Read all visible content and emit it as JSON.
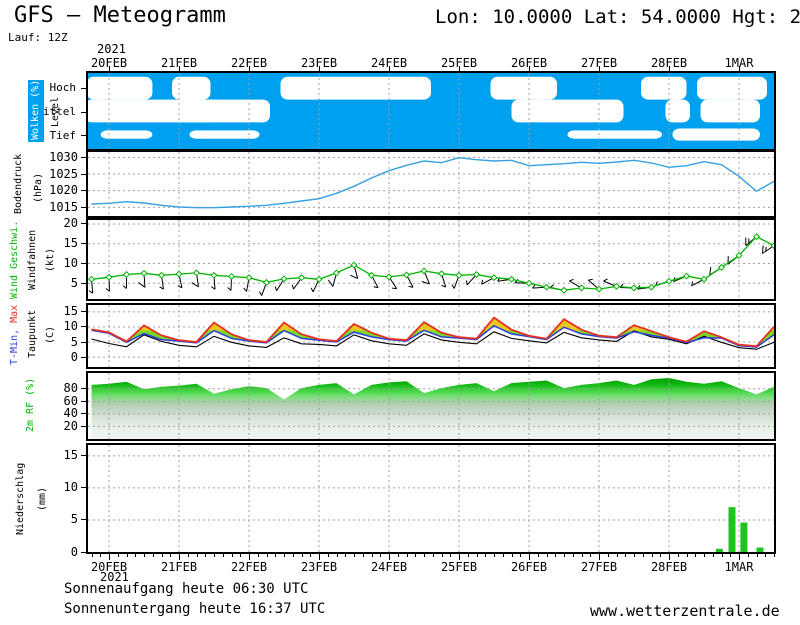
{
  "header": {
    "title": "GFS — Meteogramm",
    "coords": "Lon: 10.0000 Lat: 54.0000 Hgt: 2",
    "run_label": "Lauf: 12Z"
  },
  "time_axis": {
    "year": "2021",
    "labels": [
      "20FEB",
      "21FEB",
      "22FEB",
      "23FEB",
      "24FEB",
      "25FEB",
      "26FEB",
      "27FEB",
      "28FEB",
      "1MAR"
    ],
    "day_min": -0.3,
    "day_max": 9.5
  },
  "footer": {
    "sunrise": "Sonnenaufgang heute 06:30 UTC",
    "sunset": "Sonnenuntergang heute 16:37 UTC",
    "website": "www.wetterzentrale.de"
  },
  "colors": {
    "cloud_blue": "#00A0F0",
    "pressure_line": "#38A0E0",
    "wind_green": "#00B400",
    "temp_max_red": "#E83020",
    "temp_min_blue": "#2840E0",
    "dew_black": "#000000",
    "band_green": "#7CD628",
    "band_yellow": "#E8C81E",
    "precip_green": "#1EC41E",
    "grid_gray": "#A0A0A0"
  },
  "chart_data": [
    {
      "id": "clouds",
      "type": "cloud-cover",
      "label": "Wolken (%)",
      "sublabel": "Level",
      "rows": [
        "Hoch",
        "Mittel",
        "Tief"
      ],
      "clear_patches": {
        "hoch": [
          [
            -0.32,
            0.62
          ],
          [
            0.9,
            1.45
          ],
          [
            2.45,
            4.6
          ],
          [
            5.45,
            6.4
          ],
          [
            7.6,
            8.25
          ],
          [
            8.4,
            9.4
          ],
          [
            9.55,
            9.8
          ]
        ],
        "mittel": [
          [
            -0.35,
            1.55
          ],
          [
            0.95,
            2.3
          ],
          [
            5.75,
            7.35
          ],
          [
            7.95,
            8.3
          ],
          [
            8.45,
            9.3
          ]
        ],
        "tief": [
          [
            -0.12,
            0.62
          ],
          [
            1.15,
            2.15
          ],
          [
            6.55,
            7.9
          ],
          [
            8.05,
            9.3,
            0.16
          ]
        ]
      }
    },
    {
      "id": "pressure",
      "type": "line",
      "label": "Bodendruck",
      "unit": "(hPa)",
      "ticks": [
        1015,
        1020,
        1025,
        1030
      ],
      "y_range": [
        1012.4,
        1031.6
      ],
      "x_start": -0.25,
      "x_step": 0.25,
      "values": [
        1016.0,
        1016.2,
        1016.7,
        1016.3,
        1015.6,
        1015.1,
        1014.9,
        1014.9,
        1015.1,
        1015.3,
        1015.6,
        1016.2,
        1016.9,
        1017.6,
        1019.2,
        1021.3,
        1023.8,
        1026.0,
        1027.6,
        1028.9,
        1028.4,
        1029.9,
        1029.3,
        1028.9,
        1029.1,
        1027.5,
        1027.8,
        1028.1,
        1028.5,
        1028.2,
        1028.6,
        1029.1,
        1028.3,
        1027.0,
        1027.5,
        1028.7,
        1027.8,
        1024.3,
        1019.8,
        1022.8
      ]
    },
    {
      "id": "wind",
      "type": "wind",
      "label": "Wind Geschwi.",
      "sublabel": "Windfahnen",
      "unit": "(kt)",
      "ticks": [
        5,
        10,
        15,
        20
      ],
      "y_range": [
        1,
        21
      ],
      "x_start": -0.25,
      "x_step": 0.25,
      "speed": [
        6.0,
        6.5,
        7.2,
        7.5,
        7.0,
        7.3,
        7.6,
        7.0,
        6.7,
        6.4,
        5.2,
        6.1,
        6.4,
        6.0,
        7.6,
        9.6,
        7.0,
        6.6,
        7.1,
        8.1,
        7.4,
        7.0,
        7.2,
        6.4,
        6.0,
        5.0,
        4.0,
        3.2,
        3.8,
        3.5,
        4.2,
        3.8,
        4.0,
        5.5,
        6.8,
        6.0,
        9.0,
        12.0,
        16.8,
        14.5
      ],
      "direction": [
        175,
        178,
        180,
        176,
        172,
        168,
        172,
        176,
        182,
        190,
        200,
        212,
        215,
        205,
        195,
        165,
        152,
        147,
        152,
        157,
        162,
        200,
        222,
        242,
        262,
        272,
        266,
        282,
        300,
        310,
        292,
        272,
        262,
        252,
        247,
        242,
        237,
        232,
        230,
        236
      ]
    },
    {
      "id": "temp",
      "type": "multiline",
      "label_min": "T-Min,",
      "label_max": " Max",
      "sublabel": "Taupunkt",
      "unit": "(C)",
      "ticks": [
        0,
        5,
        10,
        15
      ],
      "y_range": [
        -3.3,
        17.3
      ],
      "x_start": -0.25,
      "x_step": 0.25,
      "t_max": [
        9.2,
        8.2,
        5.2,
        10.5,
        7.2,
        5.6,
        5.0,
        11.5,
        7.6,
        5.6,
        5.0,
        11.5,
        7.6,
        5.9,
        5.3,
        11.0,
        8.1,
        6.1,
        5.6,
        11.6,
        8.1,
        6.6,
        6.1,
        13.1,
        9.1,
        7.1,
        6.1,
        12.6,
        9.1,
        7.1,
        6.6,
        10.6,
        8.6,
        6.6,
        5.1,
        8.6,
        6.6,
        4.1,
        3.6,
        10.1
      ],
      "t_min": [
        8.9,
        7.9,
        4.9,
        7.8,
        5.8,
        5.3,
        4.7,
        8.8,
        6.2,
        5.3,
        4.7,
        8.8,
        6.2,
        5.6,
        5.0,
        8.3,
        6.7,
        5.8,
        5.3,
        8.9,
        6.7,
        6.3,
        5.8,
        10.4,
        7.7,
        6.8,
        5.8,
        9.9,
        7.7,
        6.8,
        6.3,
        8.4,
        7.2,
        6.3,
        4.8,
        6.4,
        6.3,
        3.8,
        3.3,
        7.4
      ],
      "dew_point": [
        6.0,
        4.5,
        3.4,
        7.4,
        5.2,
        3.9,
        3.4,
        6.9,
        4.9,
        3.7,
        3.2,
        6.4,
        4.4,
        4.2,
        3.7,
        7.4,
        5.4,
        4.4,
        3.9,
        7.7,
        5.7,
        4.9,
        4.4,
        8.4,
        6.2,
        5.4,
        4.7,
        8.2,
        6.4,
        5.7,
        5.2,
        8.7,
        6.7,
        5.9,
        4.4,
        6.9,
        4.9,
        3.1,
        2.6,
        4.9
      ]
    },
    {
      "id": "rh",
      "type": "area",
      "label": "2m RF (%)",
      "ticks": [
        20,
        40,
        60,
        80
      ],
      "y_range": [
        0,
        105
      ],
      "x_start": -0.25,
      "x_step": 0.25,
      "values": [
        86,
        88,
        91,
        79,
        83,
        85,
        88,
        72,
        79,
        84,
        81,
        63,
        81,
        86,
        89,
        71,
        86,
        90,
        92,
        73,
        81,
        86,
        89,
        76,
        89,
        91,
        93,
        81,
        86,
        89,
        93,
        86,
        95,
        97,
        91,
        88,
        92,
        81,
        71,
        83
      ]
    },
    {
      "id": "precip",
      "type": "bar",
      "label": "Niederschlag",
      "unit": "(mm)",
      "ticks": [
        0,
        5,
        10,
        15
      ],
      "y_range": [
        0,
        16.7
      ],
      "bars": [
        {
          "day": 8.72,
          "mm": 0.5
        },
        {
          "day": 8.9,
          "mm": 7.0
        },
        {
          "day": 9.07,
          "mm": 4.6
        },
        {
          "day": 9.3,
          "mm": 0.7
        }
      ]
    }
  ]
}
